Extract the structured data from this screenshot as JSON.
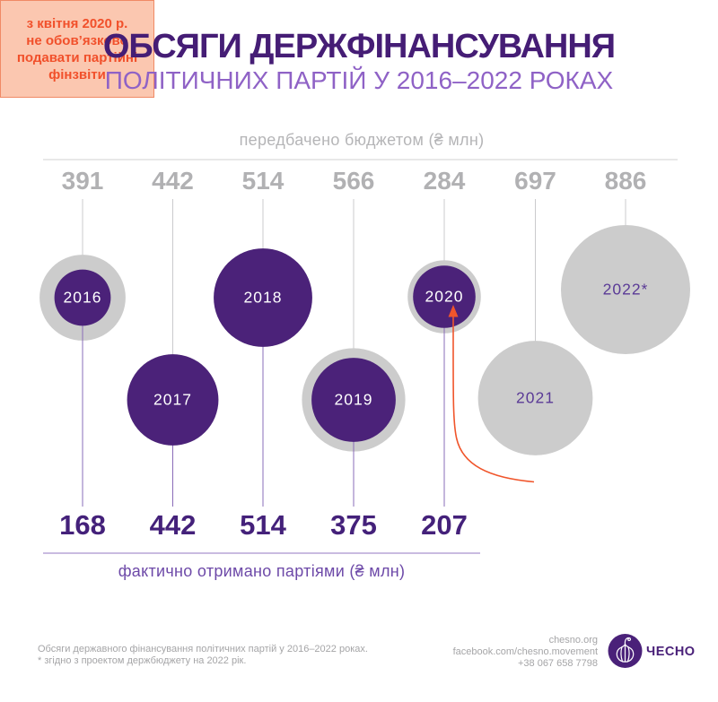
{
  "header": {
    "title": "ОБСЯГИ ДЕРЖФІНАНСУВАННЯ",
    "subtitle": "ПОЛІТИЧНИХ ПАРТІЙ У 2016–2022 РОКАХ"
  },
  "chart_data": {
    "type": "bubble",
    "categories": [
      "2016",
      "2017",
      "2018",
      "2019",
      "2020",
      "2021",
      "2022*"
    ],
    "series": [
      {
        "name": "передбачено бюджетом (₴ млн)",
        "values": [
          391,
          442,
          514,
          566,
          284,
          697,
          886
        ],
        "color": "#cccccc"
      },
      {
        "name": "фактично отримано партіями (₴ млн)",
        "values": [
          168,
          442,
          514,
          375,
          207,
          null,
          null
        ],
        "color": "#4b2279"
      }
    ],
    "top_axis_label": "передбачено бюджетом (₴ млн)",
    "bottom_axis_label": "фактично отримано партіями (₴ млн)",
    "scale_note": "bubble radius proportional to square root of value",
    "legend_position": "none"
  },
  "annotation": {
    "lines": [
      "з квітня 2020 р.",
      "не обов’язково",
      "подавати партійні",
      "фінзвіти"
    ],
    "arrow_target_year": "2020",
    "bg_color": "#fbc7b0",
    "border_color": "#f08a66",
    "text_color": "#f1502b",
    "arrow_color": "#f0552b"
  },
  "footer": {
    "note_line1": "Обсяги державного фінансування політичних партій у 2016–2022 роках.",
    "note_line2": "* згідно з проектом держбюджету на 2022 рік.",
    "website": "chesno.org",
    "facebook": "facebook.com/chesno.movement",
    "phone": "+38 067 658 7798",
    "logo_text": "ЧЕСНО"
  },
  "colors": {
    "title_purple": "#451d75",
    "subtitle_purple": "#8f62c6",
    "budget_gray": "#cccccc",
    "budget_number_gray": "#b1b1b3",
    "budget_guide_gray": "#cbcbcd",
    "received_purple": "#4b2279",
    "received_number_purple": "#44217a",
    "received_guide_purple": "#8a6cb8",
    "year_on_gray": "#5a3a96",
    "year_on_purple": "#ffffff",
    "top_rule_gray": "#d2d2d2",
    "bottom_rule_purple": "#9377c2",
    "footer_gray": "#a5a5a7",
    "logo_purple": "#4a2179"
  }
}
